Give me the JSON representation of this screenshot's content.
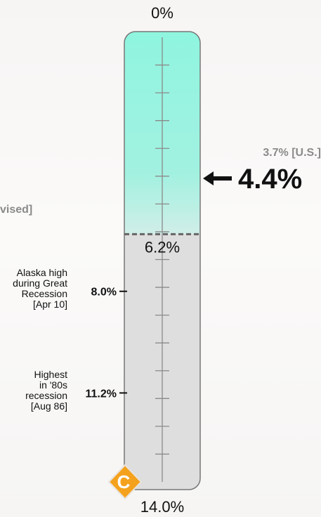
{
  "chart_data": {
    "type": "gauge",
    "scale": {
      "min": 0,
      "max": 14.0,
      "top_label": "0%",
      "bottom_label": "14.0%"
    },
    "threshold": {
      "value": 6.2,
      "label": "6.2%"
    },
    "current": {
      "name": "Alaska",
      "value": 4.4,
      "label": "4.4%"
    },
    "comparison": {
      "name": "U.S.",
      "value": 3.7,
      "label": "3.7% [U.S.]"
    },
    "markers": [
      {
        "value": 8.0,
        "label": "8.0%",
        "note": [
          "Alaska high",
          "during Great",
          "Recession",
          "[Apr 10]"
        ]
      },
      {
        "value": 11.2,
        "label": "11.2%",
        "note": [
          "Highest",
          "in '80s",
          "recession",
          "[Aug 86]"
        ]
      }
    ],
    "minor_ticks": 15,
    "colors": {
      "upper_fill": "#8ff5df",
      "lower_fill": "#dedede",
      "track": "#888888",
      "threshold_line": "#666666",
      "logo": "#f4a21d"
    }
  },
  "clipped_text": "vised]",
  "logo": {
    "letter": "C",
    "icon": "orange-diamond-logo"
  }
}
